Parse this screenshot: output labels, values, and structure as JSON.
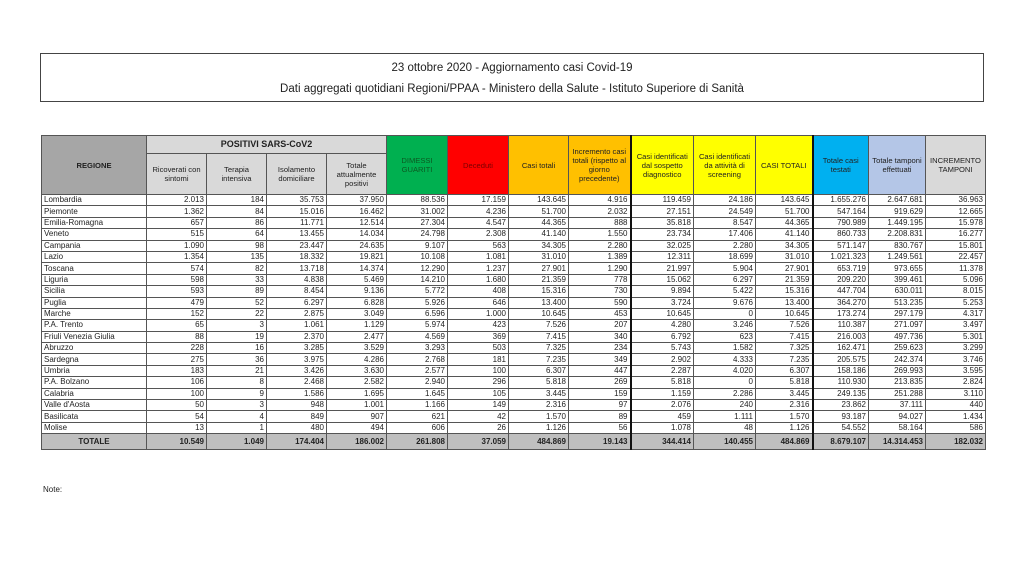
{
  "header": {
    "title": "23 ottobre 2020 - Aggiornamento casi Covid-19",
    "subtitle": "Dati aggregati quotidiani Regioni/PPAA - Ministero della Salute - Istituto Superiore di Sanità"
  },
  "table": {
    "group_header": "POSITIVI SARS-CoV2",
    "columns": [
      "REGIONE",
      "Ricoverati con sintomi",
      "Terapia intensiva",
      "Isolamento domiciliare",
      "Totale attualmente positivi",
      "DIMESSI GUARITI",
      "Deceduti",
      "Casi totali",
      "Incremento casi totali (rispetto al giorno precedente)",
      "Casi identificati dal sospetto diagnostico",
      "Casi identificati da attività di screening",
      "CASI TOTALI",
      "Totale casi testati",
      "Totale tamponi effettuati",
      "INCREMENTO TAMPONI"
    ],
    "rows": [
      [
        "Lombardia",
        "2.013",
        "184",
        "35.753",
        "37.950",
        "88.536",
        "17.159",
        "143.645",
        "4.916",
        "119.459",
        "24.186",
        "143.645",
        "1.655.276",
        "2.647.681",
        "36.963"
      ],
      [
        "Piemonte",
        "1.362",
        "84",
        "15.016",
        "16.462",
        "31.002",
        "4.236",
        "51.700",
        "2.032",
        "27.151",
        "24.549",
        "51.700",
        "547.164",
        "919.629",
        "12.665"
      ],
      [
        "Emilia-Romagna",
        "657",
        "86",
        "11.771",
        "12.514",
        "27.304",
        "4.547",
        "44.365",
        "888",
        "35.818",
        "8.547",
        "44.365",
        "790.989",
        "1.449.195",
        "15.978"
      ],
      [
        "Veneto",
        "515",
        "64",
        "13.455",
        "14.034",
        "24.798",
        "2.308",
        "41.140",
        "1.550",
        "23.734",
        "17.406",
        "41.140",
        "860.733",
        "2.208.831",
        "16.277"
      ],
      [
        "Campania",
        "1.090",
        "98",
        "23.447",
        "24.635",
        "9.107",
        "563",
        "34.305",
        "2.280",
        "32.025",
        "2.280",
        "34.305",
        "571.147",
        "830.767",
        "15.801"
      ],
      [
        "Lazio",
        "1.354",
        "135",
        "18.332",
        "19.821",
        "10.108",
        "1.081",
        "31.010",
        "1.389",
        "12.311",
        "18.699",
        "31.010",
        "1.021.323",
        "1.249.561",
        "22.457"
      ],
      [
        "Toscana",
        "574",
        "82",
        "13.718",
        "14.374",
        "12.290",
        "1.237",
        "27.901",
        "1.290",
        "21.997",
        "5.904",
        "27.901",
        "653.719",
        "973.655",
        "11.378"
      ],
      [
        "Liguria",
        "598",
        "33",
        "4.838",
        "5.469",
        "14.210",
        "1.680",
        "21.359",
        "778",
        "15.062",
        "6.297",
        "21.359",
        "209.220",
        "399.461",
        "5.096"
      ],
      [
        "Sicilia",
        "593",
        "89",
        "8.454",
        "9.136",
        "5.772",
        "408",
        "15.316",
        "730",
        "9.894",
        "5.422",
        "15.316",
        "447.704",
        "630.011",
        "8.015"
      ],
      [
        "Puglia",
        "479",
        "52",
        "6.297",
        "6.828",
        "5.926",
        "646",
        "13.400",
        "590",
        "3.724",
        "9.676",
        "13.400",
        "364.270",
        "513.235",
        "5.253"
      ],
      [
        "Marche",
        "152",
        "22",
        "2.875",
        "3.049",
        "6.596",
        "1.000",
        "10.645",
        "453",
        "10.645",
        "0",
        "10.645",
        "173.274",
        "297.179",
        "4.317"
      ],
      [
        "P.A. Trento",
        "65",
        "3",
        "1.061",
        "1.129",
        "5.974",
        "423",
        "7.526",
        "207",
        "4.280",
        "3.246",
        "7.526",
        "110.387",
        "271.097",
        "3.497"
      ],
      [
        "Friuli Venezia Giulia",
        "88",
        "19",
        "2.370",
        "2.477",
        "4.569",
        "369",
        "7.415",
        "340",
        "6.792",
        "623",
        "7.415",
        "216.003",
        "497.736",
        "5.301"
      ],
      [
        "Abruzzo",
        "228",
        "16",
        "3.285",
        "3.529",
        "3.293",
        "503",
        "7.325",
        "234",
        "5.743",
        "1.582",
        "7.325",
        "162.471",
        "259.623",
        "3.299"
      ],
      [
        "Sardegna",
        "275",
        "36",
        "3.975",
        "4.286",
        "2.768",
        "181",
        "7.235",
        "349",
        "2.902",
        "4.333",
        "7.235",
        "205.575",
        "242.374",
        "3.746"
      ],
      [
        "Umbria",
        "183",
        "21",
        "3.426",
        "3.630",
        "2.577",
        "100",
        "6.307",
        "447",
        "2.287",
        "4.020",
        "6.307",
        "158.186",
        "269.993",
        "3.595"
      ],
      [
        "P.A. Bolzano",
        "106",
        "8",
        "2.468",
        "2.582",
        "2.940",
        "296",
        "5.818",
        "269",
        "5.818",
        "0",
        "5.818",
        "110.930",
        "213.835",
        "2.824"
      ],
      [
        "Calabria",
        "100",
        "9",
        "1.586",
        "1.695",
        "1.645",
        "105",
        "3.445",
        "159",
        "1.159",
        "2.286",
        "3.445",
        "249.135",
        "251.288",
        "3.110"
      ],
      [
        "Valle d'Aosta",
        "50",
        "3",
        "948",
        "1.001",
        "1.166",
        "149",
        "2.316",
        "97",
        "2.076",
        "240",
        "2.316",
        "23.862",
        "37.111",
        "440"
      ],
      [
        "Basilicata",
        "54",
        "4",
        "849",
        "907",
        "621",
        "42",
        "1.570",
        "89",
        "459",
        "1.111",
        "1.570",
        "93.187",
        "94.027",
        "1.434"
      ],
      [
        "Molise",
        "13",
        "1",
        "480",
        "494",
        "606",
        "26",
        "1.126",
        "56",
        "1.078",
        "48",
        "1.126",
        "54.552",
        "58.164",
        "586"
      ]
    ],
    "total": [
      "TOTALE",
      "10.549",
      "1.049",
      "174.404",
      "186.002",
      "261.808",
      "37.059",
      "484.869",
      "19.143",
      "344.414",
      "140.455",
      "484.869",
      "8.679.107",
      "14.314.453",
      "182.032"
    ]
  },
  "note_label": "Note:"
}
